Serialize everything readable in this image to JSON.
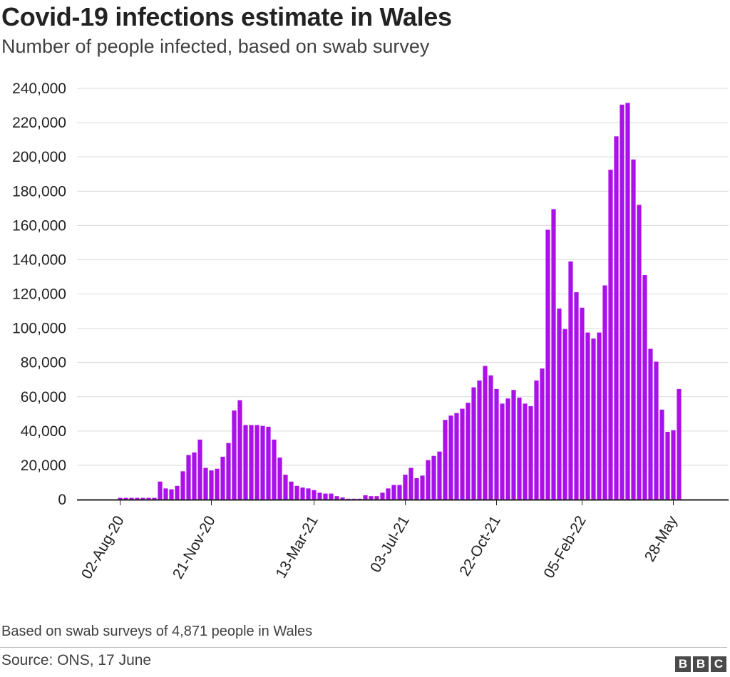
{
  "header": {
    "title": "Covid-19 infections estimate in Wales",
    "subtitle": "Number of people infected, based on swab survey"
  },
  "footer": {
    "note": "Based on swab surveys of 4,871 people in Wales",
    "source": "Source: ONS, 17 June",
    "logo_letters": [
      "B",
      "B",
      "C"
    ]
  },
  "colors": {
    "bar": "#aa11e8",
    "grid": "#d9d9d9",
    "baseline": "#222222"
  },
  "chart_data": {
    "type": "bar",
    "title": "Covid-19 infections estimate in Wales",
    "subtitle": "Number of people infected, based on swab survey",
    "xlabel": "",
    "ylabel": "",
    "ylim": [
      0,
      240000
    ],
    "yticks": [
      0,
      20000,
      40000,
      60000,
      80000,
      100000,
      120000,
      140000,
      160000,
      180000,
      200000,
      220000,
      240000
    ],
    "ytick_labels": [
      "0",
      "20,000",
      "40,000",
      "60,000",
      "80,000",
      "100,000",
      "120,000",
      "140,000",
      "160,000",
      "180,000",
      "200,000",
      "220,000",
      "240,000"
    ],
    "x_tick_labels": [
      {
        "label": "02-Aug-20",
        "index": 0
      },
      {
        "label": "21-Nov-20",
        "index": 16
      },
      {
        "label": "13-Mar-21",
        "index": 34
      },
      {
        "label": "03-Jul-21",
        "index": 50
      },
      {
        "label": "22-Oct-21",
        "index": 66
      },
      {
        "label": "05-Feb-22",
        "index": 81
      },
      {
        "label": "28-May",
        "index": 97
      }
    ],
    "grid": true,
    "legend": "none",
    "values": [
      1000,
      1000,
      1000,
      1000,
      1000,
      1000,
      1000,
      10500,
      6500,
      6000,
      8000,
      16500,
      26000,
      27500,
      35000,
      18500,
      17000,
      18000,
      25000,
      33000,
      52000,
      58000,
      43500,
      43500,
      43500,
      43000,
      42500,
      35000,
      24500,
      14500,
      10500,
      8000,
      7000,
      6500,
      5500,
      4000,
      3500,
      3500,
      2000,
      1200,
      500,
      500,
      500,
      2500,
      2000,
      2000,
      4000,
      6500,
      8500,
      8500,
      14500,
      18500,
      12500,
      14000,
      23000,
      25500,
      28000,
      46500,
      49000,
      50500,
      53000,
      56500,
      65500,
      69500,
      78000,
      72500,
      64500,
      56000,
      59000,
      64000,
      59500,
      56000,
      54500,
      69500,
      76500,
      157500,
      169500,
      111500,
      99500,
      139000,
      121000,
      112000,
      97500,
      94000,
      97500,
      125000,
      192500,
      212000,
      230500,
      231500,
      198500,
      172000,
      131000,
      88000,
      80500,
      52500,
      39500,
      40500,
      64500
    ]
  }
}
